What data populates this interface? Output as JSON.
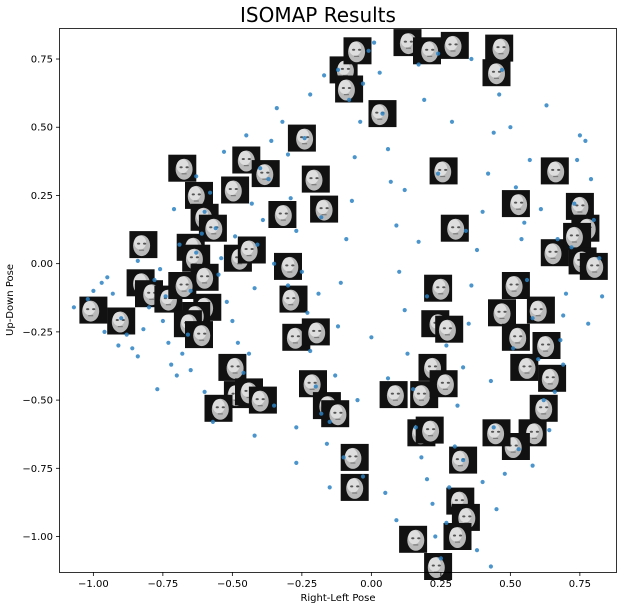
{
  "chart_data": {
    "type": "scatter",
    "title": "ISOMAP Results",
    "xlabel": "Right-Left Pose",
    "ylabel": "Up-Down Pose",
    "xlim": [
      -1.12,
      0.88
    ],
    "ylim": [
      -1.13,
      0.86
    ],
    "xticks": [
      -1.0,
      -0.75,
      -0.5,
      -0.25,
      0.0,
      0.25,
      0.5,
      0.75
    ],
    "xtick_labels": [
      "−1.00",
      "−0.75",
      "−0.50",
      "−0.25",
      "0.00",
      "0.25",
      "0.50",
      "0.75"
    ],
    "yticks": [
      0.75,
      0.5,
      0.25,
      0.0,
      -0.25,
      -0.5,
      -0.75,
      -1.0
    ],
    "ytick_labels": [
      "0.75",
      "0.50",
      "0.25",
      "0.00",
      "−0.25",
      "−0.50",
      "−0.75",
      "−1.00"
    ],
    "grid": false,
    "point_color": "#2b83c3",
    "points": [
      [
        -1.07,
        -0.16
      ],
      [
        -1.02,
        -0.13
      ],
      [
        -1.0,
        -0.1
      ],
      [
        -0.97,
        -0.07
      ],
      [
        -0.95,
        -0.05
      ],
      [
        -0.93,
        -0.11
      ],
      [
        -0.9,
        -0.2
      ],
      [
        -0.88,
        -0.26
      ],
      [
        -0.86,
        -0.31
      ],
      [
        -0.84,
        -0.34
      ],
      [
        -0.82,
        -0.24
      ],
      [
        -0.8,
        -0.16
      ],
      [
        -0.78,
        -0.06
      ],
      [
        -0.76,
        -0.02
      ],
      [
        -0.74,
        -0.12
      ],
      [
        -0.73,
        -0.29
      ],
      [
        -0.72,
        -0.37
      ],
      [
        -0.7,
        -0.41
      ],
      [
        -0.68,
        -0.33
      ],
      [
        -0.66,
        -0.26
      ],
      [
        -0.65,
        -0.1
      ],
      [
        -0.63,
        0.04
      ],
      [
        -0.61,
        0.11
      ],
      [
        -0.6,
        0.19
      ],
      [
        -0.58,
        0.26
      ],
      [
        -0.56,
        0.13
      ],
      [
        -0.54,
        0.02
      ],
      [
        -0.52,
        -0.14
      ],
      [
        -0.5,
        -0.21
      ],
      [
        -0.48,
        -0.29
      ],
      [
        -0.46,
        -0.4
      ],
      [
        -0.44,
        -0.33
      ],
      [
        -0.42,
        -0.09
      ],
      [
        -0.41,
        0.07
      ],
      [
        -0.39,
        0.16
      ],
      [
        -0.37,
        0.31
      ],
      [
        -0.36,
        0.45
      ],
      [
        -0.34,
        0.57
      ],
      [
        -0.32,
        0.52
      ],
      [
        -0.3,
        0.4
      ],
      [
        -0.29,
        0.24
      ],
      [
        -0.27,
        0.12
      ],
      [
        -0.25,
        -0.03
      ],
      [
        -0.23,
        -0.18
      ],
      [
        -0.22,
        -0.32
      ],
      [
        -0.2,
        -0.45
      ],
      [
        -0.18,
        -0.55
      ],
      [
        -0.16,
        -0.66
      ],
      [
        -0.15,
        -0.58
      ],
      [
        -0.13,
        -0.41
      ],
      [
        -0.12,
        -0.23
      ],
      [
        -0.11,
        -0.07
      ],
      [
        -0.09,
        0.09
      ],
      [
        -0.07,
        0.23
      ],
      [
        -0.06,
        0.39
      ],
      [
        -0.04,
        0.52
      ],
      [
        -0.03,
        0.66
      ],
      [
        -0.01,
        0.78
      ],
      [
        0.01,
        0.81
      ],
      [
        0.03,
        0.7
      ],
      [
        0.04,
        0.55
      ],
      [
        0.06,
        0.42
      ],
      [
        0.07,
        0.3
      ],
      [
        0.09,
        0.14
      ],
      [
        0.1,
        -0.03
      ],
      [
        0.12,
        -0.17
      ],
      [
        0.13,
        -0.33
      ],
      [
        0.15,
        -0.46
      ],
      [
        0.16,
        -0.6
      ],
      [
        0.18,
        -0.71
      ],
      [
        0.2,
        -0.79
      ],
      [
        0.22,
        -0.88
      ],
      [
        0.23,
        -1.0
      ],
      [
        0.25,
        -1.08
      ],
      [
        0.27,
        -0.95
      ],
      [
        0.28,
        -0.82
      ],
      [
        0.3,
        -0.67
      ],
      [
        0.31,
        -0.52
      ],
      [
        0.33,
        -0.38
      ],
      [
        0.35,
        -0.22
      ],
      [
        0.36,
        -0.08
      ],
      [
        0.38,
        0.05
      ],
      [
        0.4,
        0.19
      ],
      [
        0.42,
        0.33
      ],
      [
        0.44,
        0.48
      ],
      [
        0.46,
        0.62
      ],
      [
        0.47,
        0.71
      ],
      [
        0.5,
        0.5
      ],
      [
        0.52,
        0.28
      ],
      [
        0.54,
        0.09
      ],
      [
        0.56,
        -0.06
      ],
      [
        0.58,
        -0.2
      ],
      [
        0.6,
        -0.35
      ],
      [
        0.62,
        -0.5
      ],
      [
        0.64,
        -0.61
      ],
      [
        0.66,
        -0.47
      ],
      [
        0.68,
        -0.28
      ],
      [
        0.7,
        -0.11
      ],
      [
        0.72,
        0.06
      ],
      [
        0.73,
        0.22
      ],
      [
        0.74,
        0.38
      ],
      [
        0.75,
        0.47
      ],
      [
        0.77,
        0.45
      ],
      [
        0.79,
        0.31
      ],
      [
        0.8,
        0.16
      ],
      [
        0.82,
        0.02
      ],
      [
        0.83,
        -0.12
      ],
      [
        0.78,
        -0.22
      ],
      [
        0.69,
        -0.19
      ],
      [
        0.63,
        0.58
      ],
      [
        0.57,
        0.38
      ],
      [
        0.45,
        -0.9
      ],
      [
        0.4,
        -0.8
      ],
      [
        0.33,
        -0.72
      ],
      [
        0.05,
        -0.84
      ],
      [
        -0.03,
        -0.78
      ],
      [
        -0.1,
        -0.71
      ],
      [
        -0.27,
        -0.6
      ],
      [
        -0.35,
        -0.52
      ],
      [
        -0.6,
        -0.47
      ],
      [
        -0.65,
        -0.39
      ],
      [
        -0.77,
        -0.46
      ],
      [
        -0.91,
        -0.3
      ],
      [
        -0.96,
        -0.25
      ],
      [
        -0.53,
        0.41
      ],
      [
        -0.45,
        0.47
      ],
      [
        -0.22,
        0.62
      ],
      [
        -0.17,
        0.69
      ],
      [
        -0.12,
        0.71
      ],
      [
        0.17,
        0.73
      ],
      [
        0.24,
        0.77
      ],
      [
        0.36,
        0.75
      ],
      [
        0.12,
        0.27
      ],
      [
        0.17,
        0.08
      ],
      [
        0.2,
        -0.12
      ],
      [
        0.27,
        -0.3
      ],
      [
        0.44,
        -0.6
      ],
      [
        0.48,
        -0.77
      ],
      [
        0.53,
        -0.68
      ],
      [
        0.58,
        -0.74
      ],
      [
        -0.3,
        -0.08
      ],
      [
        -0.35,
        0.0
      ],
      [
        -0.18,
        0.17
      ],
      [
        -0.43,
        0.22
      ],
      [
        -0.49,
        0.1
      ],
      [
        -0.55,
        -0.04
      ],
      [
        -0.69,
        0.07
      ],
      [
        -0.71,
        0.2
      ],
      [
        -0.84,
        0.01
      ],
      [
        -0.19,
        -0.11
      ],
      [
        0.0,
        -0.27
      ],
      [
        0.06,
        -0.42
      ],
      [
        -0.05,
        -0.5
      ],
      [
        0.51,
        -0.31
      ],
      [
        0.43,
        -0.43
      ],
      [
        0.61,
        0.2
      ],
      [
        0.67,
        0.09
      ],
      [
        0.69,
        -0.37
      ],
      [
        0.55,
        0.15
      ],
      [
        0.34,
        0.12
      ],
      [
        0.24,
        0.33
      ],
      [
        0.29,
        0.52
      ],
      [
        0.19,
        0.6
      ],
      [
        -0.08,
        0.6
      ],
      [
        -0.24,
        0.46
      ],
      [
        -0.4,
        0.35
      ],
      [
        -0.63,
        0.32
      ],
      [
        -0.75,
        -0.21
      ],
      [
        -0.57,
        -0.58
      ],
      [
        -0.42,
        -0.63
      ],
      [
        -0.27,
        -0.73
      ],
      [
        -0.15,
        -0.82
      ],
      [
        0.09,
        -0.94
      ],
      [
        0.38,
        -1.05
      ],
      [
        0.43,
        -1.11
      ]
    ],
    "thumbnails": [
      [
        -1.0,
        -0.17
      ],
      [
        -0.9,
        -0.21
      ],
      [
        -0.83,
        -0.07
      ],
      [
        -0.8,
        -0.11
      ],
      [
        -0.82,
        0.07
      ],
      [
        -0.73,
        -0.13
      ],
      [
        -0.68,
        0.35
      ],
      [
        -0.62,
        0.25
      ],
      [
        -0.6,
        0.17
      ],
      [
        -0.57,
        0.13
      ],
      [
        -0.65,
        0.06
      ],
      [
        -0.63,
        0.02
      ],
      [
        -0.6,
        -0.05
      ],
      [
        -0.68,
        -0.08
      ],
      [
        -0.59,
        -0.16
      ],
      [
        -0.63,
        -0.19
      ],
      [
        -0.66,
        -0.22
      ],
      [
        -0.62,
        -0.26
      ],
      [
        -0.49,
        0.27
      ],
      [
        -0.45,
        0.38
      ],
      [
        -0.48,
        0.02
      ],
      [
        -0.43,
        0.05
      ],
      [
        -0.38,
        0.33
      ],
      [
        -0.32,
        0.18
      ],
      [
        -0.25,
        0.46
      ],
      [
        -0.2,
        0.31
      ],
      [
        -0.17,
        0.2
      ],
      [
        -0.3,
        -0.01
      ],
      [
        -0.28,
        -0.13
      ],
      [
        -0.27,
        -0.27
      ],
      [
        -0.2,
        -0.25
      ],
      [
        -0.5,
        -0.38
      ],
      [
        -0.48,
        -0.48
      ],
      [
        -0.44,
        -0.47
      ],
      [
        -0.55,
        -0.53
      ],
      [
        -0.39,
        -0.5
      ],
      [
        -0.21,
        -0.44
      ],
      [
        -0.16,
        -0.52
      ],
      [
        -0.13,
        -0.55
      ],
      [
        -0.06,
        -0.71
      ],
      [
        -0.06,
        -0.82
      ],
      [
        0.08,
        -0.48
      ],
      [
        0.19,
        -0.48
      ],
      [
        0.18,
        -0.62
      ],
      [
        0.21,
        -0.61
      ],
      [
        0.23,
        -0.22
      ],
      [
        0.28,
        -0.24
      ],
      [
        0.22,
        -0.38
      ],
      [
        0.26,
        -0.44
      ],
      [
        0.33,
        -0.72
      ],
      [
        0.32,
        -0.87
      ],
      [
        0.34,
        -0.93
      ],
      [
        0.15,
        -1.01
      ],
      [
        0.24,
        -1.11
      ],
      [
        0.31,
        -1.0
      ],
      [
        -0.1,
        0.71
      ],
      [
        -0.08,
        0.64
      ],
      [
        -0.05,
        0.78
      ],
      [
        0.13,
        0.81
      ],
      [
        0.2,
        0.78
      ],
      [
        0.3,
        0.8
      ],
      [
        0.45,
        0.7
      ],
      [
        0.46,
        0.79
      ],
      [
        0.04,
        0.55
      ],
      [
        0.26,
        0.34
      ],
      [
        0.3,
        0.13
      ],
      [
        0.24,
        -0.09
      ],
      [
        0.52,
        -0.08
      ],
      [
        0.47,
        -0.18
      ],
      [
        0.52,
        -0.27
      ],
      [
        0.61,
        -0.17
      ],
      [
        0.63,
        -0.3
      ],
      [
        0.66,
        0.34
      ],
      [
        0.52,
        0.22
      ],
      [
        0.66,
        0.04
      ],
      [
        0.75,
        0.21
      ],
      [
        0.77,
        0.13
      ],
      [
        0.74,
        0.1
      ],
      [
        0.76,
        0.01
      ],
      [
        0.8,
        -0.01
      ],
      [
        0.55,
        -0.38
      ],
      [
        0.65,
        -0.42
      ],
      [
        0.62,
        -0.53
      ],
      [
        0.58,
        -0.62
      ],
      [
        0.52,
        -0.67
      ],
      [
        0.45,
        -0.62
      ]
    ]
  }
}
